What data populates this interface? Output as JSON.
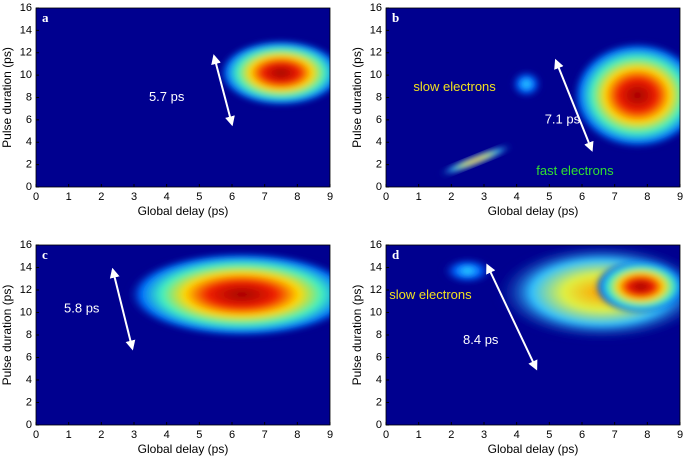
{
  "chart_data": [
    {
      "type": "heatmap",
      "panel_label": "a",
      "x_label": "Global delay (ps)",
      "y_label": "Pulse duration (ps)",
      "xlim": [
        0,
        9
      ],
      "ylim": [
        0,
        16
      ],
      "xticks": [
        0,
        1,
        2,
        3,
        4,
        5,
        6,
        7,
        8,
        9
      ],
      "yticks": [
        0,
        2,
        4,
        6,
        8,
        10,
        12,
        14,
        16
      ],
      "annotations": [
        {
          "text": "5.7 ps",
          "color": "#ffffff"
        }
      ]
    },
    {
      "type": "heatmap",
      "panel_label": "b",
      "x_label": "Global delay (ps)",
      "y_label": "Pulse duration (ps)",
      "xlim": [
        0,
        9
      ],
      "ylim": [
        0,
        16
      ],
      "xticks": [
        0,
        1,
        2,
        3,
        4,
        5,
        6,
        7,
        8,
        9
      ],
      "yticks": [
        0,
        2,
        4,
        6,
        8,
        10,
        12,
        14,
        16
      ],
      "annotations": [
        {
          "text": "7.1 ps",
          "color": "#ffffff"
        },
        {
          "text": "slow electrons",
          "color": "#f0e020"
        },
        {
          "text": "fast electrons",
          "color": "#30e030"
        }
      ]
    },
    {
      "type": "heatmap",
      "panel_label": "c",
      "x_label": "Global delay (ps)",
      "y_label": "Pulse duration (ps)",
      "xlim": [
        0,
        9
      ],
      "ylim": [
        0,
        16
      ],
      "xticks": [
        0,
        1,
        2,
        3,
        4,
        5,
        6,
        7,
        8,
        9
      ],
      "yticks": [
        0,
        2,
        4,
        6,
        8,
        10,
        12,
        14,
        16
      ],
      "annotations": [
        {
          "text": "5.8 ps",
          "color": "#ffffff"
        }
      ]
    },
    {
      "type": "heatmap",
      "panel_label": "d",
      "x_label": "Global delay (ps)",
      "y_label": "Pulse duration (ps)",
      "xlim": [
        0,
        9
      ],
      "ylim": [
        0,
        16
      ],
      "xticks": [
        0,
        1,
        2,
        3,
        4,
        5,
        6,
        7,
        8,
        9
      ],
      "yticks": [
        0,
        2,
        4,
        6,
        8,
        10,
        12,
        14,
        16
      ],
      "annotations": [
        {
          "text": "8.4 ps",
          "color": "#ffffff"
        },
        {
          "text": "slow electrons",
          "color": "#f0e020"
        }
      ]
    }
  ]
}
